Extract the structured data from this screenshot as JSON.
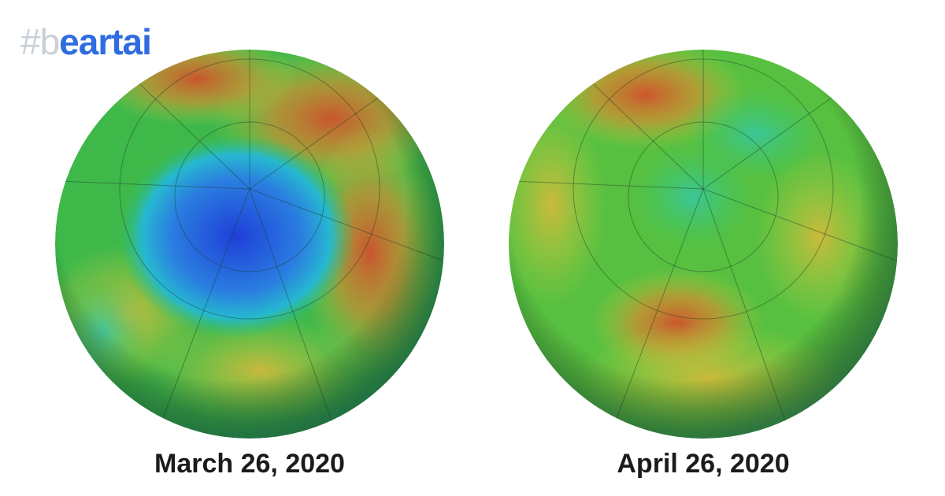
{
  "logo": "#beartai",
  "panels": [
    {
      "caption": "March 26, 2020"
    },
    {
      "caption": "April 26, 2020"
    }
  ]
}
